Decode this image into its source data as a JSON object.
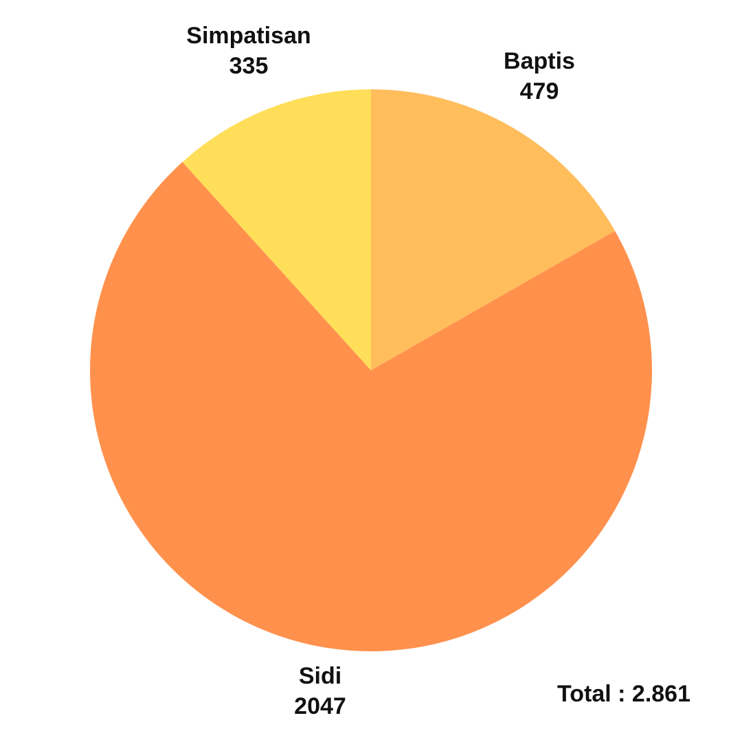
{
  "chart_data": {
    "type": "pie",
    "slices": [
      {
        "name": "Baptis",
        "value": 479,
        "value_label": "479",
        "color": "#FFBD5C"
      },
      {
        "name": "Sidi",
        "value": 2047,
        "value_label": "2047",
        "color": "#FF914D"
      },
      {
        "name": "Simpatisan",
        "value": 335,
        "value_label": "335",
        "color": "#FFDE59"
      }
    ],
    "start_angle_deg": 0,
    "direction": "clockwise",
    "total_text": "Total :  2.861"
  }
}
